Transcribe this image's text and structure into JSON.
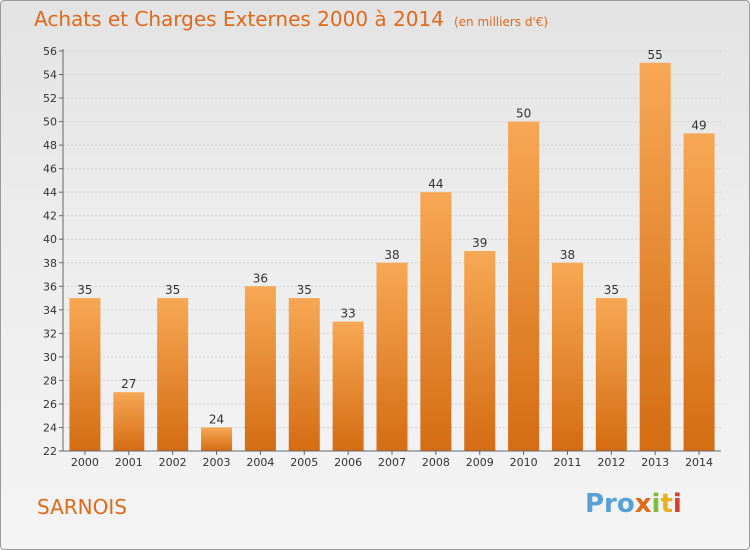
{
  "title": "Achats et Charges Externes 2000 à 2014",
  "subtitle": "(en milliers d'€)",
  "town": "SARNOIS",
  "logo": {
    "part1": "Pro",
    "part2": "x",
    "part3": "i",
    "part4": "t",
    "part5": "i"
  },
  "colors": {
    "bar_light": "#f5a552",
    "bar_dark": "#d56d14",
    "text": "#e06a1b"
  },
  "chart_data": {
    "type": "bar",
    "categories": [
      "2000",
      "2001",
      "2002",
      "2003",
      "2004",
      "2005",
      "2006",
      "2007",
      "2008",
      "2009",
      "2010",
      "2011",
      "2012",
      "2013",
      "2014"
    ],
    "values": [
      35,
      27,
      35,
      24,
      36,
      35,
      33,
      38,
      44,
      39,
      50,
      38,
      35,
      55,
      49
    ],
    "ylim": [
      22,
      56
    ],
    "yticks": [
      22,
      24,
      26,
      28,
      30,
      32,
      34,
      36,
      38,
      40,
      42,
      44,
      46,
      48,
      50,
      52,
      54,
      56
    ],
    "grid": true
  }
}
